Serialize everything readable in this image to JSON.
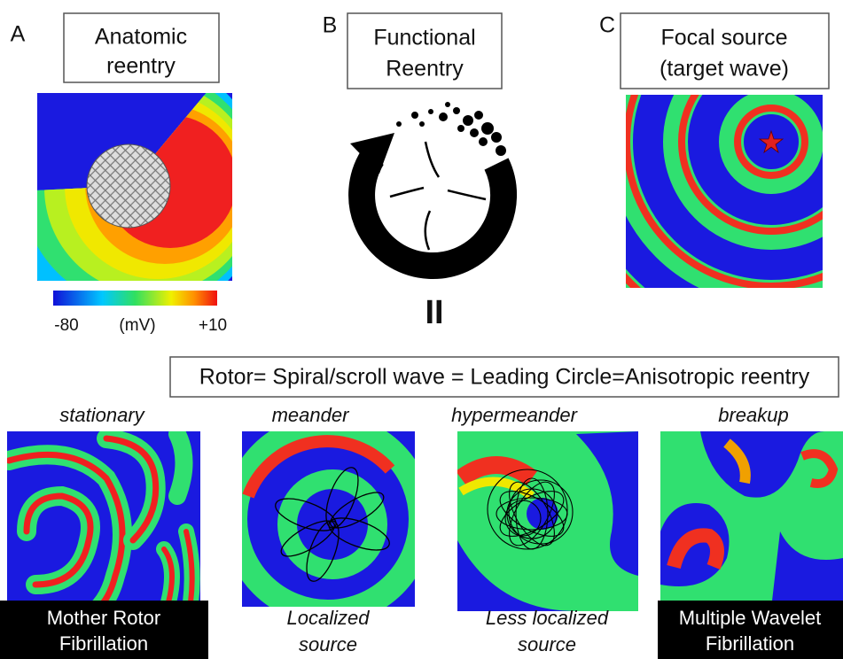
{
  "panels": [
    {
      "letter": "A",
      "title": [
        "Anatomic",
        "reentry"
      ]
    },
    {
      "letter": "B",
      "title": [
        "Functional",
        "Reentry"
      ]
    },
    {
      "letter": "C",
      "title": [
        "Focal source",
        "(target wave)"
      ]
    }
  ],
  "colorbar": {
    "min_label": "-80",
    "unit": "(mV)",
    "max_label": "+10"
  },
  "pause_symbol": "II",
  "banner": "Rotor= Spiral/scroll wave = Leading Circle=Anisotropic reentry",
  "rotor_types": [
    {
      "label": "stationary",
      "caption": [
        "Mother Rotor",
        "Fibrillation"
      ]
    },
    {
      "label": "meander",
      "caption": [
        "Localized",
        "source"
      ]
    },
    {
      "label": "hypermeander",
      "caption": [
        "Less localized",
        "source"
      ]
    },
    {
      "label": "breakup",
      "caption": [
        "Multiple Wavelet",
        "Fibrillation"
      ]
    }
  ]
}
